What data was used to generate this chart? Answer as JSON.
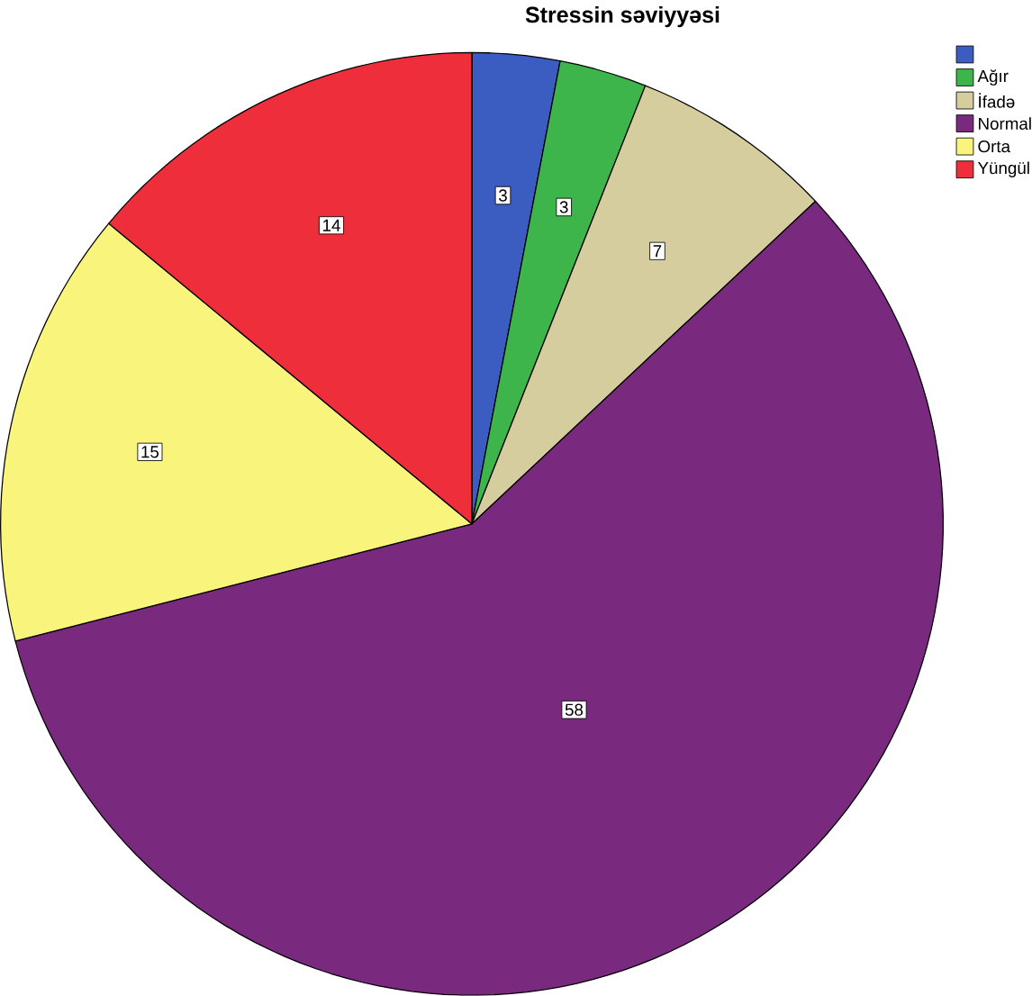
{
  "chart_data": {
    "type": "pie",
    "title": "Stressin səviyyəsi",
    "categories": [
      null,
      "Ağır",
      "İfadə",
      "Normal",
      "Orta",
      "Yüngül"
    ],
    "values": [
      3,
      3,
      7,
      58,
      15,
      14
    ],
    "colors": [
      "#3b5cc0",
      "#3db54b",
      "#d5cd9e",
      "#7a2a7e",
      "#f8f47c",
      "#ee2f3b"
    ],
    "data_labels": true,
    "legend": "top right"
  }
}
